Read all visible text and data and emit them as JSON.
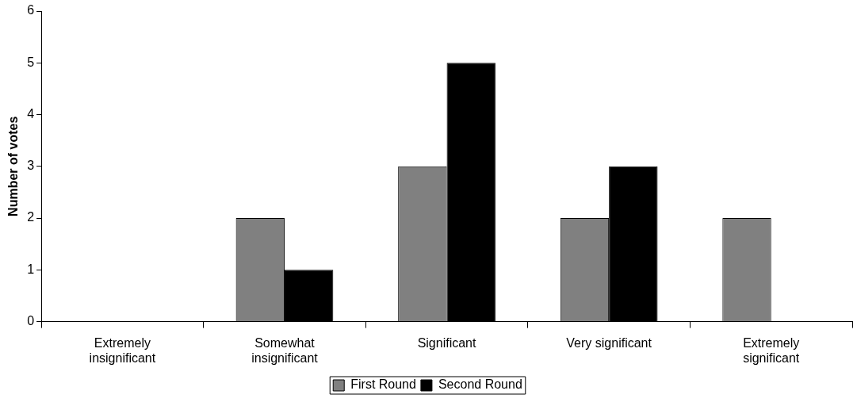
{
  "chart_data": {
    "type": "bar",
    "ylabel": "Number of votes",
    "categories": [
      "Extremely insignificant",
      "Somewhat insignificant",
      "Significant",
      "Very significant",
      "Extremely significant"
    ],
    "series": [
      {
        "name": "First Round",
        "color": "#808080",
        "values": [
          0,
          2,
          3,
          2,
          2
        ]
      },
      {
        "name": "Second Round",
        "color": "#000000",
        "values": [
          0,
          1,
          5,
          3,
          0
        ]
      }
    ],
    "ylim": [
      0,
      6
    ],
    "yticks": [
      0,
      1,
      2,
      3,
      4,
      5,
      6
    ],
    "grid": false,
    "legend": "bottom"
  }
}
